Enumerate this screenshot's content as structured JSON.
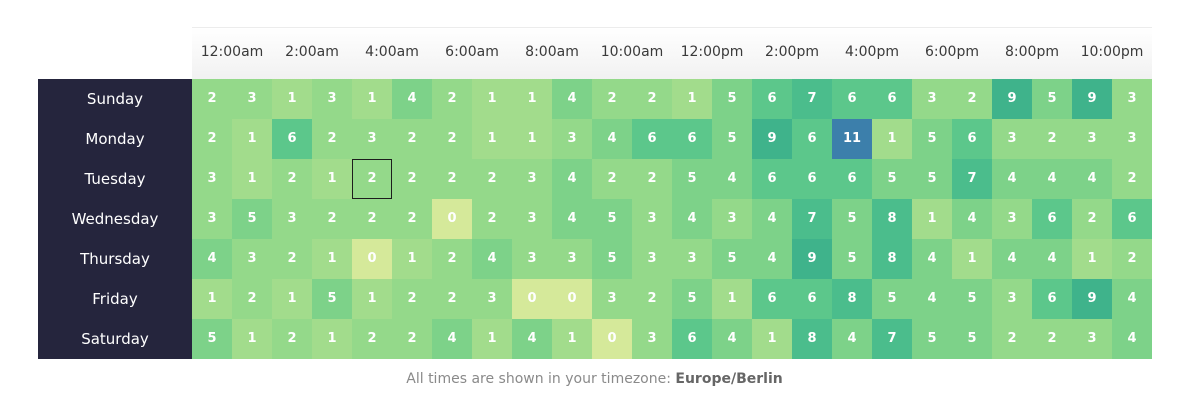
{
  "chart_data": {
    "type": "heatmap",
    "hour_labels": [
      "12:00am",
      "2:00am",
      "4:00am",
      "6:00am",
      "8:00am",
      "10:00am",
      "12:00pm",
      "2:00pm",
      "4:00pm",
      "6:00pm",
      "8:00pm",
      "10:00pm"
    ],
    "days": [
      "Sunday",
      "Monday",
      "Tuesday",
      "Wednesday",
      "Thursday",
      "Friday",
      "Saturday"
    ],
    "values": [
      [
        2,
        3,
        1,
        3,
        1,
        4,
        2,
        1,
        1,
        4,
        2,
        2,
        1,
        5,
        6,
        7,
        6,
        6,
        3,
        2,
        9,
        5,
        9,
        3
      ],
      [
        2,
        1,
        6,
        2,
        3,
        2,
        2,
        1,
        1,
        3,
        4,
        6,
        6,
        5,
        9,
        6,
        11,
        1,
        5,
        6,
        3,
        2,
        3,
        3
      ],
      [
        3,
        1,
        2,
        1,
        2,
        2,
        2,
        2,
        3,
        4,
        2,
        2,
        5,
        4,
        6,
        6,
        6,
        5,
        5,
        7,
        4,
        4,
        4,
        2
      ],
      [
        3,
        5,
        3,
        2,
        2,
        2,
        0,
        2,
        3,
        4,
        5,
        3,
        4,
        3,
        4,
        7,
        5,
        8,
        1,
        4,
        3,
        6,
        2,
        6
      ],
      [
        4,
        3,
        2,
        1,
        0,
        1,
        2,
        4,
        3,
        3,
        5,
        3,
        3,
        5,
        4,
        9,
        5,
        8,
        4,
        1,
        4,
        4,
        1,
        2
      ],
      [
        1,
        2,
        1,
        5,
        1,
        2,
        2,
        3,
        0,
        0,
        3,
        2,
        5,
        1,
        6,
        6,
        8,
        5,
        4,
        5,
        3,
        6,
        9,
        4
      ],
      [
        5,
        1,
        2,
        1,
        2,
        2,
        4,
        1,
        4,
        1,
        0,
        3,
        6,
        4,
        1,
        8,
        4,
        7,
        5,
        5,
        2,
        2,
        3,
        4
      ]
    ],
    "highlighted_cell": {
      "day": "Tuesday",
      "hour": 4
    },
    "colors": {
      "zero": "#d5e99a",
      "one": "#a2dc8c",
      "low": "#94d98a",
      "mid": "#7dd289",
      "high": "#5cc78b",
      "higher": "#4bbd8c",
      "top": "#3fb38b",
      "max": "#3c7fab",
      "day_panel": "#25253d"
    }
  },
  "footer": {
    "text": "All times are shown in your timezone: ",
    "timezone": "Europe/Berlin"
  }
}
